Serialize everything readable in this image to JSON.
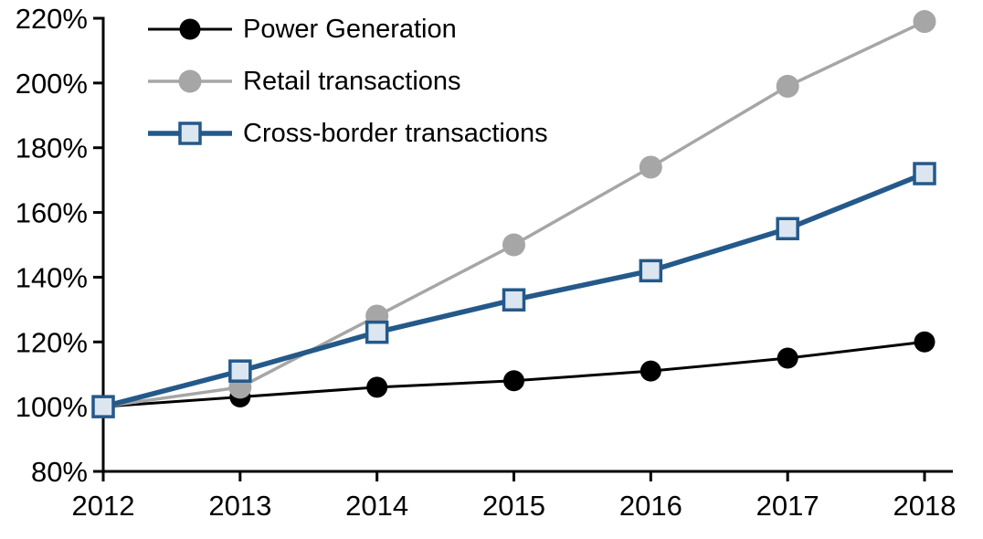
{
  "chart_data": {
    "type": "line",
    "title": "",
    "categories": [
      "2012",
      "2013",
      "2014",
      "2015",
      "2016",
      "2017",
      "2018"
    ],
    "series": [
      {
        "name": "Power Generation",
        "values": [
          100,
          103,
          106,
          108,
          111,
          115,
          120
        ],
        "color": "#000000",
        "marker": "circle",
        "marker_fill": "#000000",
        "marker_size": 11.5,
        "line_width": 3
      },
      {
        "name": "Retail transactions",
        "values": [
          100,
          106,
          128,
          150,
          174,
          199,
          219
        ],
        "color": "#A6A6A6",
        "marker": "circle",
        "marker_fill": "#A6A6A6",
        "marker_size": 12.5,
        "line_width": 3.5
      },
      {
        "name": "Cross-border transactions",
        "values": [
          100,
          111,
          123,
          133,
          142,
          155,
          172
        ],
        "color": "#24598A",
        "marker": "square",
        "marker_fill": "#DCE6F1",
        "marker_size": 11,
        "line_width": 5.5
      }
    ],
    "y_axis": {
      "min": 80,
      "max": 220,
      "tick_step": 20,
      "tick_suffix": "%",
      "labels": [
        "80%",
        "100%",
        "120%",
        "140%",
        "160%",
        "180%",
        "200%",
        "220%"
      ]
    },
    "x_axis": {
      "labels": [
        "2012",
        "2013",
        "2014",
        "2015",
        "2016",
        "2017",
        "2018"
      ]
    },
    "grid": false,
    "legend_position": "top-left",
    "axis_color": "#000000",
    "background": "#FFFFFF"
  }
}
